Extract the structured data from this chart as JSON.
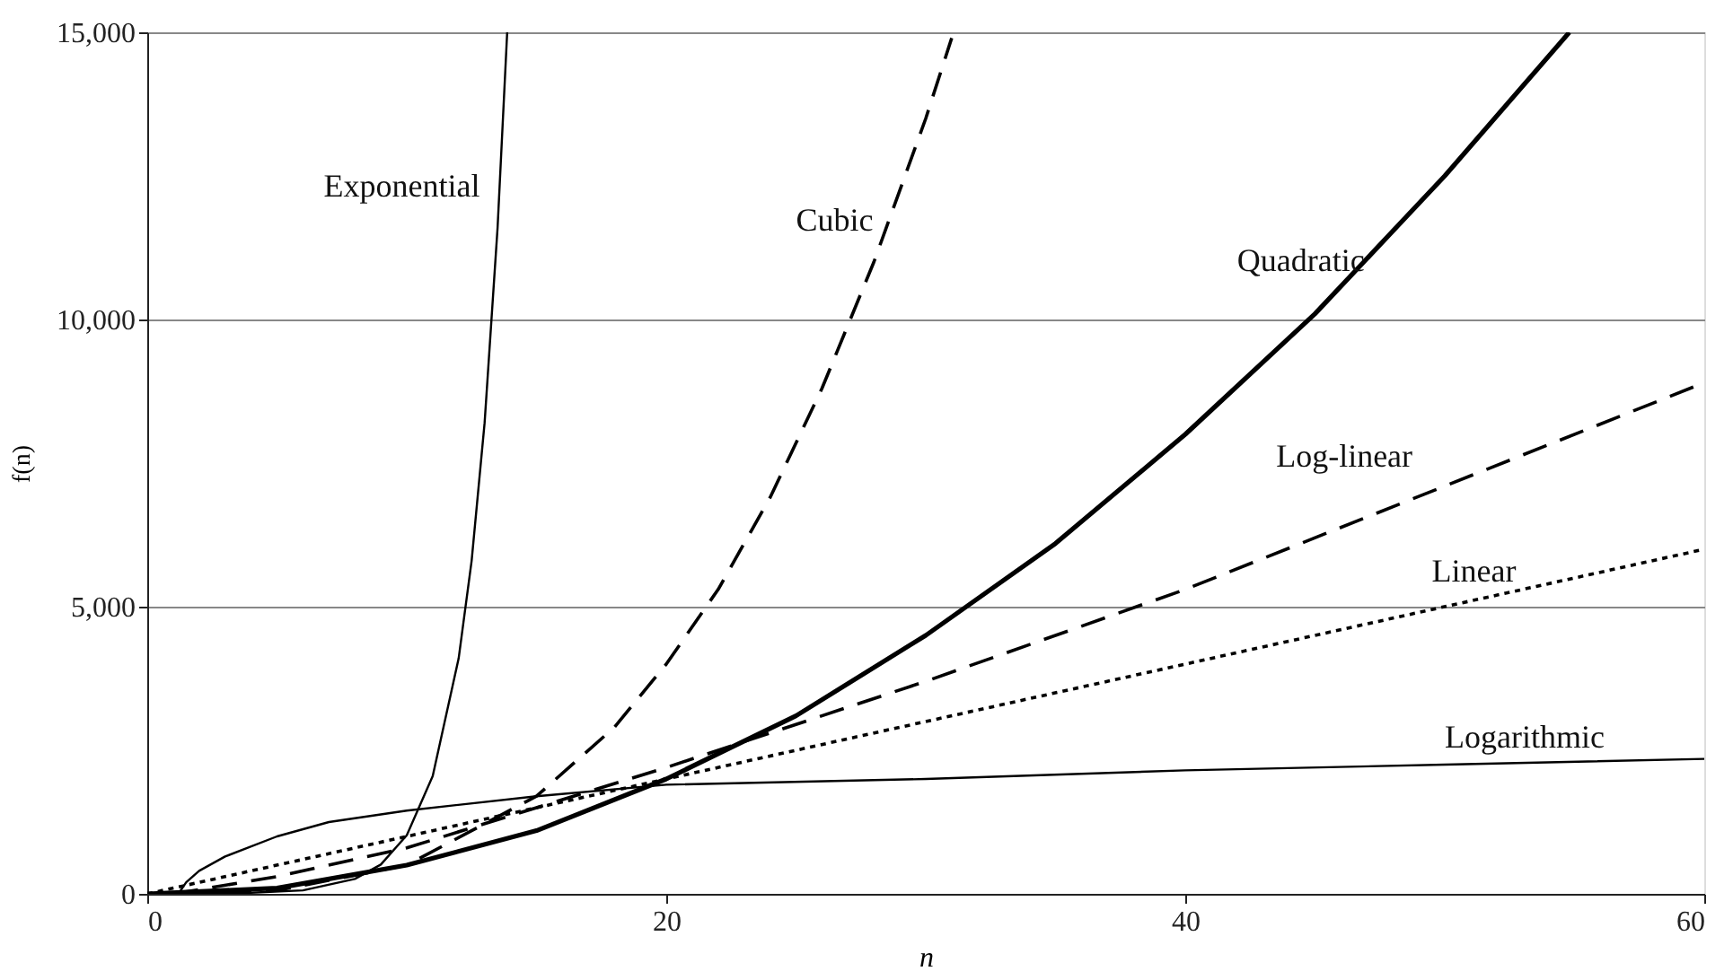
{
  "chart_data": {
    "type": "line",
    "xlabel": "n",
    "ylabel": "f(n)",
    "xlim": [
      0,
      60
    ],
    "ylim": [
      0,
      15000
    ],
    "xticks": [
      0,
      20,
      40,
      60
    ],
    "yticks": [
      0,
      {
        "value": 5000,
        "label": "5,000"
      },
      {
        "value": 10000,
        "label": "10,000"
      },
      {
        "value": 15000,
        "label": "15,000"
      }
    ],
    "grid": "y",
    "marker": "none",
    "series": [
      {
        "name": "Exponential",
        "color": "#000000",
        "line_style": "solid",
        "x": [
          0,
          4,
          6,
          8,
          9,
          10,
          11,
          12,
          12.5,
          13,
          13.5,
          13.87
        ],
        "values": [
          0,
          20,
          60,
          260,
          510,
          1020,
          2050,
          4100,
          5800,
          8200,
          11600,
          15000
        ]
      },
      {
        "name": "Cubic",
        "color": "#000000",
        "line_style": "dashed",
        "x": [
          0,
          5,
          10,
          15,
          18,
          20,
          22,
          24,
          26,
          28,
          30,
          31
        ],
        "values": [
          0,
          60,
          500,
          1700,
          2900,
          4000,
          5300,
          6900,
          8800,
          11000,
          13500,
          14900
        ]
      },
      {
        "name": "Quadratic",
        "color": "#000000",
        "line_style": "solid",
        "x": [
          0,
          5,
          10,
          15,
          20,
          25,
          30,
          35,
          40,
          45,
          50,
          54.8
        ],
        "values": [
          0,
          100,
          500,
          1100,
          2000,
          3100,
          4500,
          6100,
          8000,
          10100,
          12500,
          15000
        ]
      },
      {
        "name": "Log-linear",
        "color": "#000000",
        "line_style": "dashed",
        "x": [
          1,
          5,
          10,
          15,
          20,
          30,
          40,
          50,
          60
        ],
        "values": [
          0,
          300,
          800,
          1500,
          2200,
          3700,
          5300,
          7100,
          8900
        ]
      },
      {
        "name": "Linear",
        "color": "#000000",
        "line_style": "dotted",
        "x": [
          0,
          60
        ],
        "values": [
          0,
          6000
        ]
      },
      {
        "name": "Logarithmic",
        "color": "#000000",
        "line_style": "solid",
        "x": [
          1.2,
          1.5,
          2,
          3,
          5,
          7,
          10,
          15,
          20,
          30,
          40,
          50,
          60
        ],
        "values": [
          0,
          200,
          400,
          650,
          1000,
          1250,
          1450,
          1700,
          1900,
          2000,
          2150,
          2250,
          2350
        ]
      }
    ]
  }
}
